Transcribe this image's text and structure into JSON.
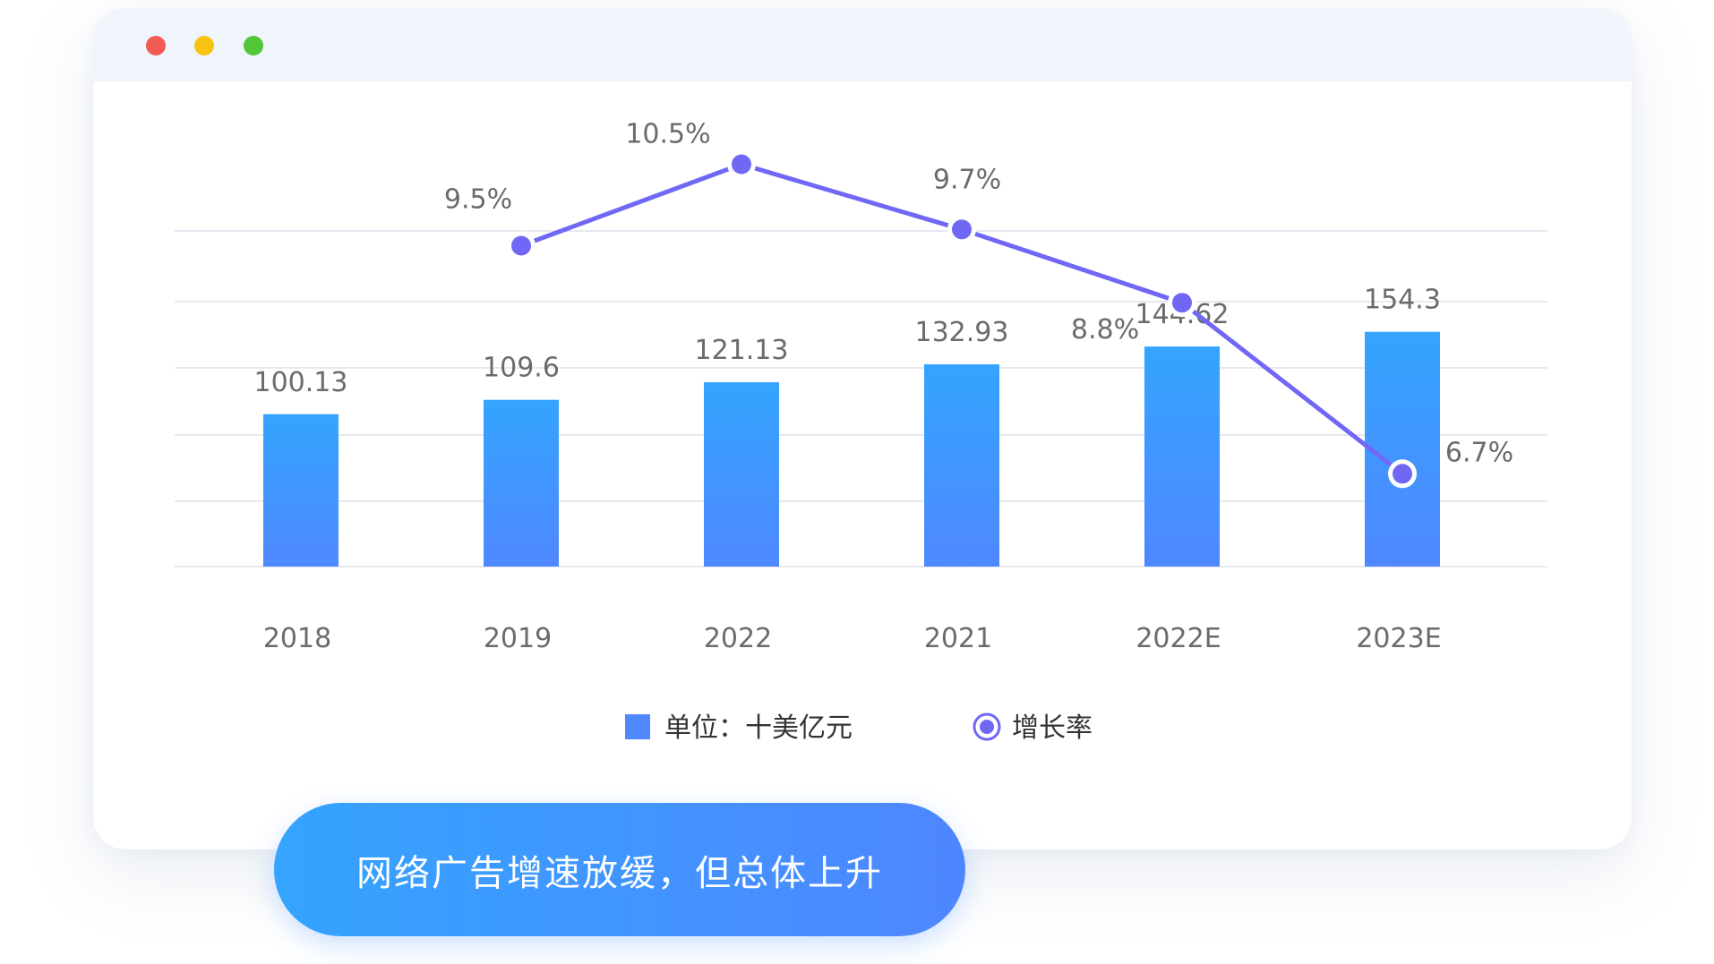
{
  "colors": {
    "bar_top": "#34a4ff",
    "bar_bottom": "#4f88ff",
    "line": "#7068f5",
    "grid": "#e6e9f0",
    "banner_start": "#34a4ff",
    "banner_end": "#4e86ff"
  },
  "window_controls": [
    "close",
    "minimize",
    "maximize"
  ],
  "chart_data": {
    "type": "bar",
    "categories": [
      "2018",
      "2019",
      "2022",
      "2021",
      "2022E",
      "2023E"
    ],
    "series": [
      {
        "name": "单位：十美亿元",
        "type": "bar",
        "values": [
          100.13,
          109.6,
          121.13,
          132.93,
          144.62,
          154.3
        ],
        "labels": [
          "100.13",
          "109.6",
          "121.13",
          "132.93",
          "144.62",
          "154.3"
        ]
      },
      {
        "name": "增长率",
        "type": "line",
        "values": [
          null,
          9.5,
          10.5,
          9.7,
          8.8,
          6.7
        ],
        "labels": [
          "",
          "9.5%",
          "10.5%",
          "9.7%",
          "8.8%",
          "6.7%"
        ]
      }
    ],
    "legend": {
      "placement": "bottom",
      "bar_label": "单位：十美亿元",
      "line_label": "增长率"
    },
    "grid": true
  },
  "banner": {
    "text": "网络广告增速放缓，但总体上升"
  }
}
